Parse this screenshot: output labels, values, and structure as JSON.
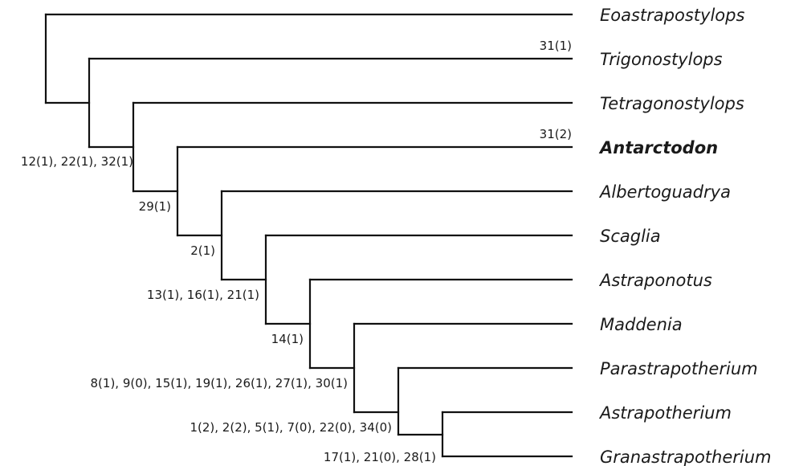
{
  "taxa": [
    {
      "id": "t1",
      "label": "Eoastrapostylops",
      "bold": false
    },
    {
      "id": "t2",
      "label": "Trigonostylops",
      "bold": false
    },
    {
      "id": "t3",
      "label": "Tetragonostylops",
      "bold": false
    },
    {
      "id": "t4",
      "label": "Antarctodon",
      "bold": true
    },
    {
      "id": "t5",
      "label": "Albertoguadrya",
      "bold": false
    },
    {
      "id": "t6",
      "label": "Scaglia",
      "bold": false
    },
    {
      "id": "t7",
      "label": "Astraponotus",
      "bold": false
    },
    {
      "id": "t8",
      "label": "Maddenia",
      "bold": false
    },
    {
      "id": "t9",
      "label": "Parastrapotherium",
      "bold": false
    },
    {
      "id": "t10",
      "label": "Astrapotherium",
      "bold": false
    },
    {
      "id": "t11",
      "label": "Granastrapotherium",
      "bold": false
    }
  ],
  "branch_characters": [
    {
      "id": "c-trig",
      "label": "31(1)"
    },
    {
      "id": "c-antarc",
      "label": "31(2)"
    }
  ],
  "node_characters": [
    {
      "id": "n2",
      "label": "12(1), 22(1), 32(1)"
    },
    {
      "id": "n4",
      "label": "29(1)"
    },
    {
      "id": "n5",
      "label": "2(1)"
    },
    {
      "id": "n6",
      "label": "13(1), 16(1), 21(1)"
    },
    {
      "id": "n7",
      "label": "14(1)"
    },
    {
      "id": "n8",
      "label": "8(1), 9(0), 15(1), 19(1), 26(1), 27(1), 30(1)"
    },
    {
      "id": "n9",
      "label": "1(2), 2(2), 5(1), 7(0), 22(0), 34(0)"
    },
    {
      "id": "n10",
      "label": "17(1), 21(0), 28(1)"
    }
  ]
}
